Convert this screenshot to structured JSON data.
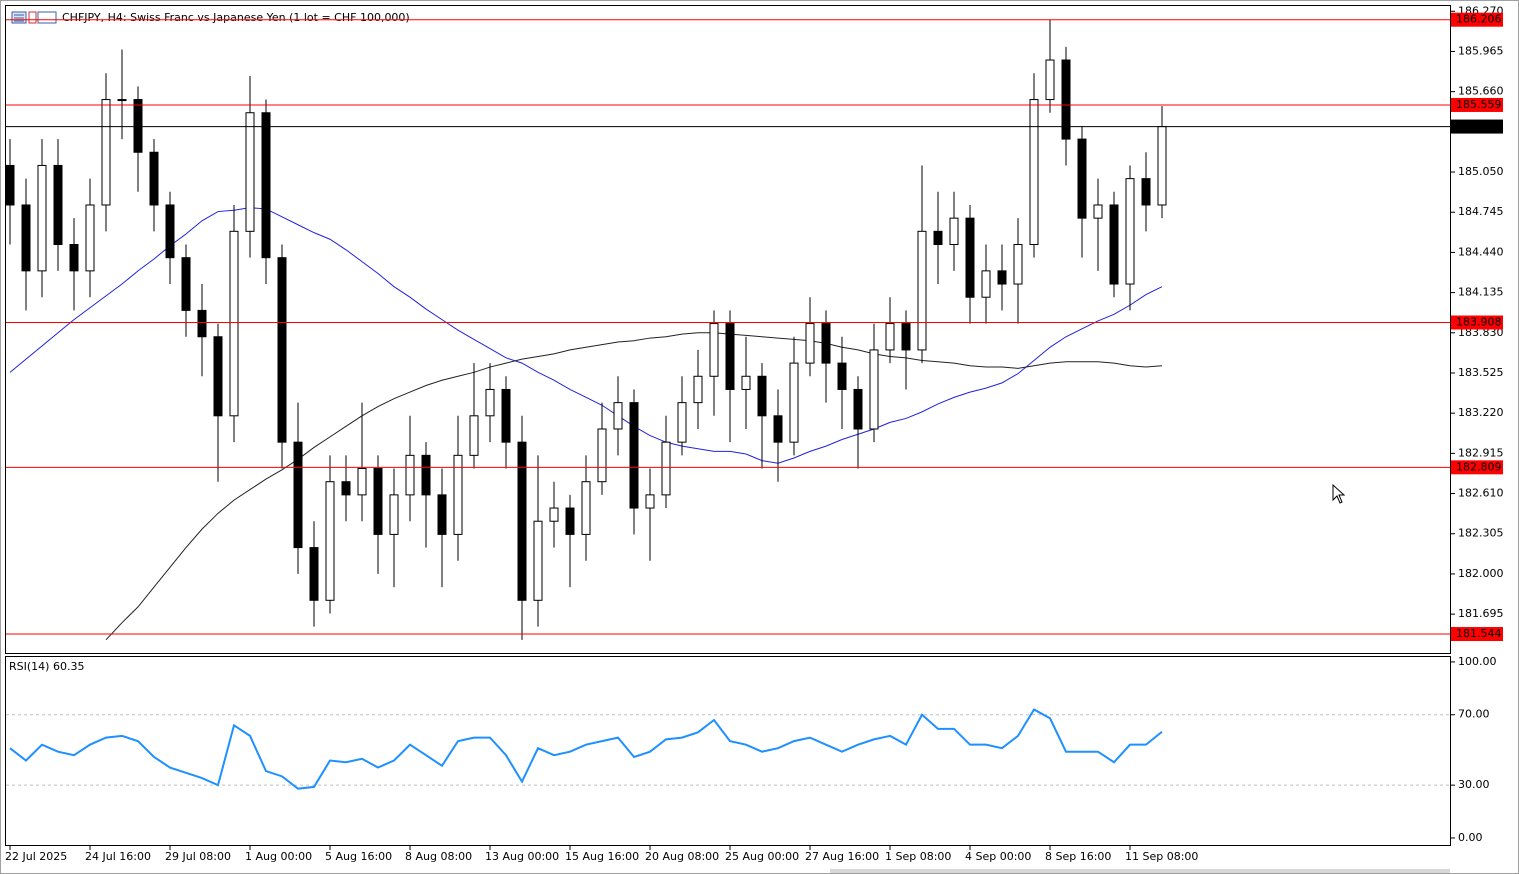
{
  "chart_data": [
    {
      "type": "candlestick",
      "title": "CHFJPY, H4:  Swiss Franc vs Japanese Yen (1 lot = CHF 100,000)",
      "categories": [
        "22 Jul 2025",
        null,
        null,
        null,
        null,
        "24 Jul 16:00",
        null,
        null,
        null,
        null,
        "29 Jul 08:00",
        null,
        null,
        null,
        null,
        "1 Aug 00:00",
        null,
        null,
        null,
        null,
        "5 Aug 16:00",
        null,
        null,
        null,
        null,
        "8 Aug 08:00",
        null,
        null,
        null,
        null,
        "13 Aug 00:00",
        null,
        null,
        null,
        null,
        "15 Aug 16:00",
        null,
        null,
        null,
        null,
        "20 Aug 08:00",
        null,
        null,
        null,
        null,
        "25 Aug 00:00",
        null,
        null,
        null,
        null,
        "27 Aug 16:00",
        null,
        null,
        null,
        null,
        "1 Sep 08:00",
        null,
        null,
        null,
        null,
        "4 Sep 00:00",
        null,
        null,
        null,
        null,
        "8 Sep 16:00",
        null,
        null,
        null,
        null,
        "11 Sep 08:00",
        null,
        null
      ],
      "open": [
        185.1,
        184.8,
        184.3,
        185.1,
        184.5,
        184.3,
        184.8,
        185.6,
        185.6,
        185.2,
        184.8,
        184.4,
        184.0,
        183.8,
        183.2,
        184.6,
        185.5,
        184.4,
        183.0,
        182.2,
        181.8,
        182.7,
        182.6,
        182.8,
        182.3,
        182.6,
        182.9,
        182.6,
        182.3,
        182.9,
        183.2,
        183.4,
        183.0,
        181.8,
        182.4,
        182.5,
        182.3,
        182.7,
        183.1,
        183.3,
        182.5,
        182.6,
        183.0,
        183.3,
        183.5,
        183.9,
        183.4,
        183.5,
        183.2,
        183.0,
        183.6,
        183.9,
        183.6,
        183.4,
        183.1,
        183.7,
        183.9,
        183.7,
        184.6,
        184.5,
        184.7,
        184.1,
        184.3,
        184.2,
        184.5,
        185.6,
        185.9,
        185.3,
        184.7,
        184.8,
        184.2,
        185.0,
        184.8
      ],
      "high": [
        185.3,
        185.0,
        185.3,
        185.3,
        184.7,
        185.0,
        185.8,
        185.98,
        185.7,
        185.3,
        184.9,
        184.5,
        184.2,
        183.9,
        184.8,
        185.78,
        185.6,
        184.5,
        183.3,
        182.4,
        182.9,
        182.9,
        183.3,
        182.9,
        182.8,
        183.2,
        183.0,
        182.8,
        183.2,
        183.6,
        183.6,
        183.5,
        183.2,
        182.9,
        182.7,
        182.6,
        182.9,
        183.3,
        183.5,
        183.4,
        182.8,
        183.2,
        183.5,
        183.7,
        184.0,
        184.0,
        183.8,
        183.6,
        183.4,
        183.8,
        184.1,
        184.0,
        183.8,
        183.5,
        183.9,
        184.1,
        184.0,
        185.1,
        184.9,
        184.9,
        184.8,
        184.5,
        184.5,
        184.7,
        185.8,
        186.206,
        186.0,
        185.4,
        185.0,
        184.9,
        185.1,
        185.2,
        185.55
      ],
      "low": [
        184.5,
        184.0,
        184.1,
        184.3,
        184.0,
        184.1,
        184.6,
        185.3,
        184.9,
        184.6,
        184.2,
        183.8,
        183.5,
        182.7,
        183.0,
        184.4,
        184.2,
        182.8,
        182.0,
        181.6,
        181.7,
        182.4,
        182.4,
        182.0,
        181.9,
        182.4,
        182.2,
        181.9,
        182.1,
        182.8,
        183.0,
        182.8,
        181.5,
        181.6,
        182.2,
        181.9,
        182.1,
        182.6,
        182.9,
        182.3,
        182.1,
        182.5,
        182.9,
        183.1,
        183.2,
        183.0,
        183.1,
        182.8,
        182.7,
        182.9,
        183.5,
        183.3,
        183.1,
        182.8,
        183.0,
        183.6,
        183.4,
        183.6,
        184.2,
        184.3,
        183.9,
        183.9,
        184.0,
        183.9,
        184.4,
        185.5,
        185.1,
        184.4,
        184.3,
        184.1,
        184.0,
        184.6,
        184.7
      ],
      "close": [
        184.8,
        184.3,
        185.1,
        184.5,
        184.3,
        184.8,
        185.6,
        185.6,
        185.2,
        184.8,
        184.4,
        184.0,
        183.8,
        183.2,
        184.6,
        185.5,
        184.4,
        183.0,
        182.2,
        181.8,
        182.7,
        182.6,
        182.8,
        182.3,
        182.6,
        182.9,
        182.6,
        182.3,
        182.9,
        183.2,
        183.4,
        183.0,
        181.8,
        182.4,
        182.5,
        182.3,
        182.7,
        183.1,
        183.3,
        182.5,
        182.6,
        183.0,
        183.3,
        183.5,
        183.9,
        183.4,
        183.5,
        183.2,
        183.0,
        183.6,
        183.9,
        183.6,
        183.4,
        183.1,
        183.7,
        183.9,
        183.7,
        184.6,
        184.5,
        184.7,
        184.1,
        184.3,
        184.2,
        184.5,
        185.6,
        185.9,
        185.3,
        184.7,
        184.8,
        184.2,
        185.0,
        184.8,
        185.395
      ],
      "bull_color": "#ffffff",
      "bear_color": "#000000",
      "lines": [
        {
          "color": "#2222dd",
          "values": [
            183.53,
            183.63,
            183.73,
            183.83,
            183.93,
            184.02,
            184.11,
            184.2,
            184.3,
            184.39,
            184.49,
            184.58,
            184.68,
            184.75,
            184.76,
            184.78,
            184.77,
            184.71,
            184.65,
            184.59,
            184.54,
            184.46,
            184.37,
            184.28,
            184.18,
            184.1,
            184.01,
            183.93,
            183.85,
            183.78,
            183.71,
            183.64,
            183.6,
            183.53,
            183.47,
            183.4,
            183.34,
            183.28,
            183.2,
            183.12,
            183.05,
            183.0,
            182.97,
            182.95,
            182.93,
            182.93,
            182.91,
            182.86,
            182.84,
            182.88,
            182.93,
            182.97,
            183.02,
            183.06,
            183.1,
            183.15,
            183.18,
            183.23,
            183.29,
            183.34,
            183.38,
            183.41,
            183.45,
            183.52,
            183.62,
            183.72,
            183.8,
            183.86,
            183.92,
            183.97,
            184.04,
            184.12,
            184.18
          ]
        },
        {
          "color": "#222222",
          "values": [
            null,
            null,
            null,
            null,
            null,
            null,
            181.5,
            181.63,
            181.75,
            181.9,
            182.05,
            182.2,
            182.34,
            182.46,
            182.56,
            182.64,
            182.72,
            182.79,
            182.87,
            182.96,
            183.04,
            183.12,
            183.2,
            183.27,
            183.33,
            183.38,
            183.43,
            183.47,
            183.5,
            183.53,
            183.57,
            183.6,
            183.63,
            183.65,
            183.67,
            183.7,
            183.72,
            183.74,
            183.76,
            183.77,
            183.79,
            183.8,
            183.82,
            183.83,
            183.83,
            183.82,
            183.81,
            183.8,
            183.79,
            183.78,
            183.77,
            183.75,
            183.72,
            183.7,
            183.67,
            183.65,
            183.64,
            183.62,
            183.61,
            183.6,
            183.58,
            183.57,
            183.57,
            183.56,
            183.58,
            183.6,
            183.61,
            183.61,
            183.61,
            183.6,
            183.58,
            183.57,
            183.58
          ]
        }
      ],
      "levels": [
        {
          "value": 186.206,
          "color": "#ff0000"
        },
        {
          "value": 185.559,
          "color": "#ff0000"
        },
        {
          "value": 185.395,
          "color": "#000000"
        },
        {
          "value": 183.908,
          "color": "#ff0000"
        },
        {
          "value": 182.809,
          "color": "#ff0000"
        },
        {
          "value": 181.544,
          "color": "#ff0000"
        }
      ],
      "ylim": [
        181.4,
        186.31
      ],
      "yticks": [
        {
          "value": 186.27,
          "label": "186.270"
        },
        185.965,
        {
          "value": 185.66,
          "label": "185.660"
        },
        {
          "value": 185.05,
          "label": "185.050"
        },
        184.745,
        {
          "value": 184.44,
          "label": "184.440"
        },
        184.135,
        {
          "value": 183.83,
          "label": "183.830"
        },
        183.525,
        {
          "value": 183.22,
          "label": "183.220"
        },
        182.915,
        {
          "value": 182.61,
          "label": "182.610"
        },
        182.305,
        {
          "value": 182.0,
          "label": "182.000"
        },
        181.695
      ]
    },
    {
      "type": "line",
      "title": "RSI(14) 60.35",
      "color": "#1e90ff",
      "values": [
        51,
        44,
        53,
        49,
        47,
        53,
        57,
        58,
        55,
        46,
        40,
        37,
        34,
        30,
        64,
        58,
        38,
        35,
        28,
        29,
        44,
        43,
        45,
        40,
        44,
        53,
        47,
        41,
        55,
        57,
        57,
        47,
        32,
        51,
        47,
        49,
        53,
        55,
        57,
        46,
        49,
        56,
        57,
        60,
        67,
        55,
        53,
        49,
        51,
        55,
        57,
        53,
        49,
        53,
        56,
        58,
        53,
        70,
        62,
        62,
        53,
        53,
        51,
        58,
        73,
        68,
        49,
        49,
        49,
        43,
        53,
        53,
        60.35
      ],
      "levels": [
        70,
        30
      ],
      "ylim": [
        -4,
        102.8
      ],
      "yticks": [
        {
          "value": 100,
          "label": "100.00"
        },
        {
          "value": 70,
          "label": "70.00"
        },
        {
          "value": 30,
          "label": "30.00"
        },
        {
          "value": 0,
          "label": "0.00"
        }
      ]
    }
  ]
}
